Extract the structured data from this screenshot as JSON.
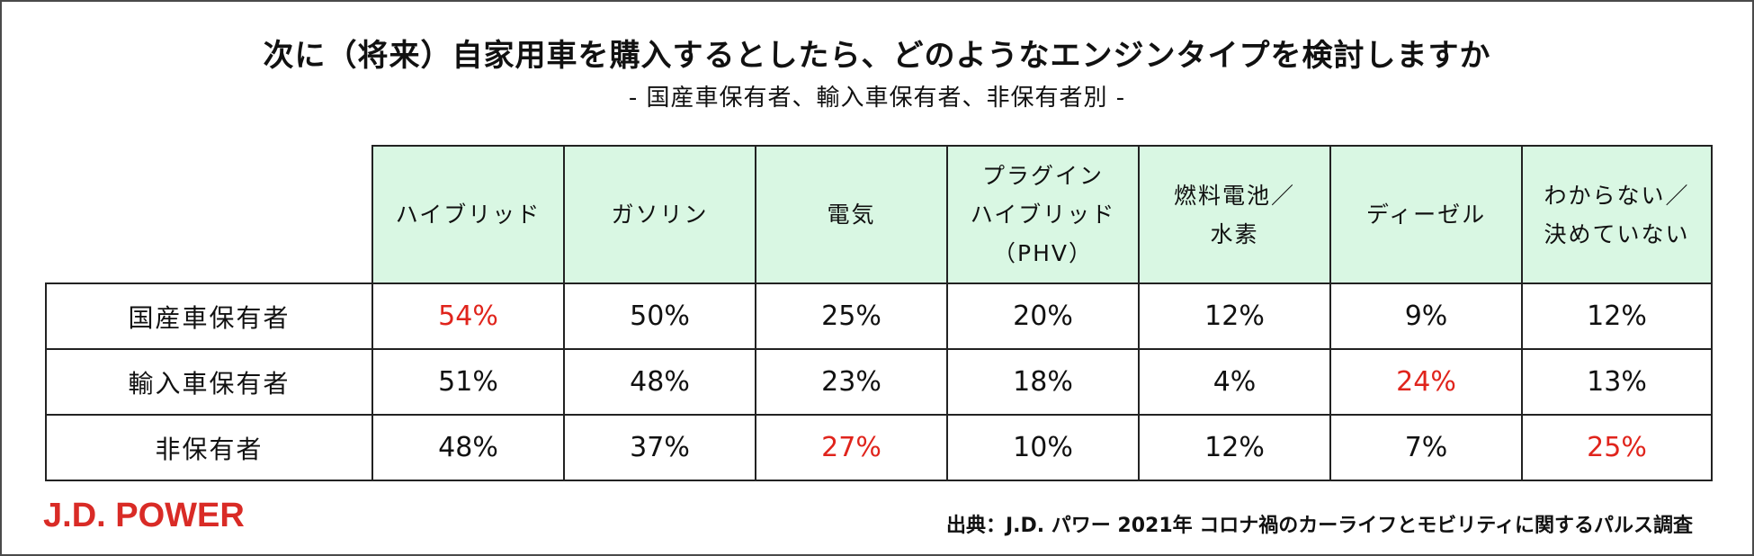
{
  "chart_data": {
    "type": "table",
    "title": "次に（将来）自家用車を購入するとしたら、どのようなエンジンタイプを検討しますか",
    "subtitle": "- 国産車保有者、輸入車保有者、非保有者別 -",
    "columns": [
      [
        "ハイブリッド"
      ],
      [
        "ガソリン"
      ],
      [
        "電気"
      ],
      [
        "プラグイン",
        "ハイブリッド",
        "（PHV）"
      ],
      [
        "燃料電池／",
        "水素"
      ],
      [
        "ディーゼル"
      ],
      [
        "わからない／",
        "決めていない"
      ]
    ],
    "rows": [
      {
        "label": "国産車保有者",
        "values": [
          "54%",
          "50%",
          "25%",
          "20%",
          "12%",
          "9%",
          "12%"
        ],
        "highlight": [
          0
        ]
      },
      {
        "label": "輸入車保有者",
        "values": [
          "51%",
          "48%",
          "23%",
          "18%",
          "4%",
          "24%",
          "13%"
        ],
        "highlight": [
          5
        ]
      },
      {
        "label": "非保有者",
        "values": [
          "48%",
          "37%",
          "27%",
          "10%",
          "12%",
          "7%",
          "25%"
        ],
        "highlight": [
          2,
          6
        ]
      }
    ],
    "highlight_color": "#e0241c",
    "header_color": "#d9f7e3"
  },
  "brand": {
    "logo_text": "J.D. POWER",
    "logo_color": "#d92b26"
  },
  "source": "出典：J.D. パワー 2021年 コロナ禍のカーライフとモビリティに関するパルス調査"
}
